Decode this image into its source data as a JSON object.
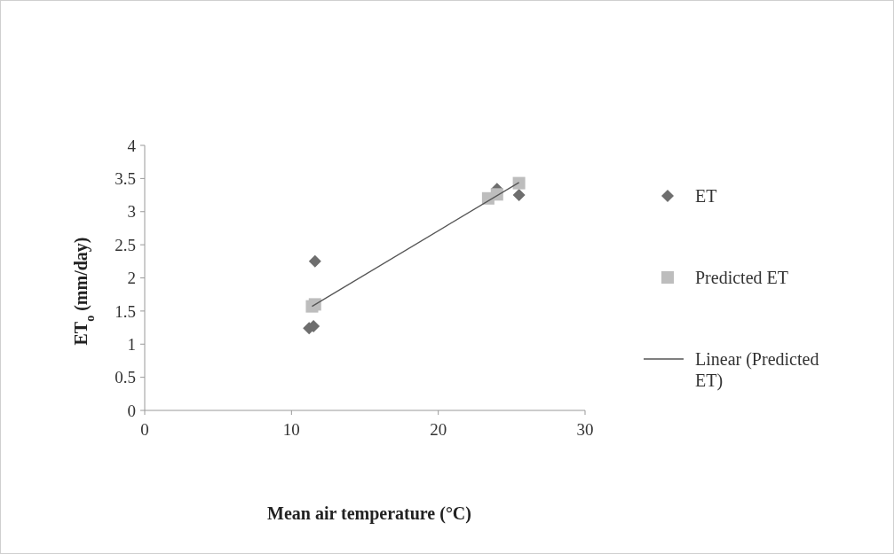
{
  "chart_data": {
    "type": "scatter",
    "xlabel": "Mean air temperature (°C)",
    "ylabel": "ET$_{o}$ (mm/day)",
    "xlim": [
      0,
      30
    ],
    "xticks": [
      0,
      10,
      20,
      30
    ],
    "ylim": [
      0,
      4
    ],
    "yticks": [
      0,
      0.5,
      1,
      1.5,
      2,
      2.5,
      3,
      3.5,
      4
    ],
    "legend": "right",
    "grid": false,
    "series": [
      {
        "name": "ET",
        "marker": "diamond",
        "color": "#6e6e6e",
        "x": [
          11.2,
          11.5,
          11.6,
          24.0,
          25.5
        ],
        "values": [
          1.24,
          1.27,
          2.25,
          3.34,
          3.25
        ]
      },
      {
        "name": "Predicted ET",
        "marker": "square",
        "color": "#bdbdbd",
        "x": [
          11.4,
          11.6,
          23.4,
          24.0,
          25.5
        ],
        "values": [
          1.57,
          1.6,
          3.2,
          3.26,
          3.43
        ]
      },
      {
        "name": "Linear (Predicted ET)",
        "type": "line",
        "line_style": "solid",
        "color": "#555555",
        "x": [
          11.4,
          25.5
        ],
        "values": [
          1.57,
          3.44
        ]
      }
    ]
  }
}
